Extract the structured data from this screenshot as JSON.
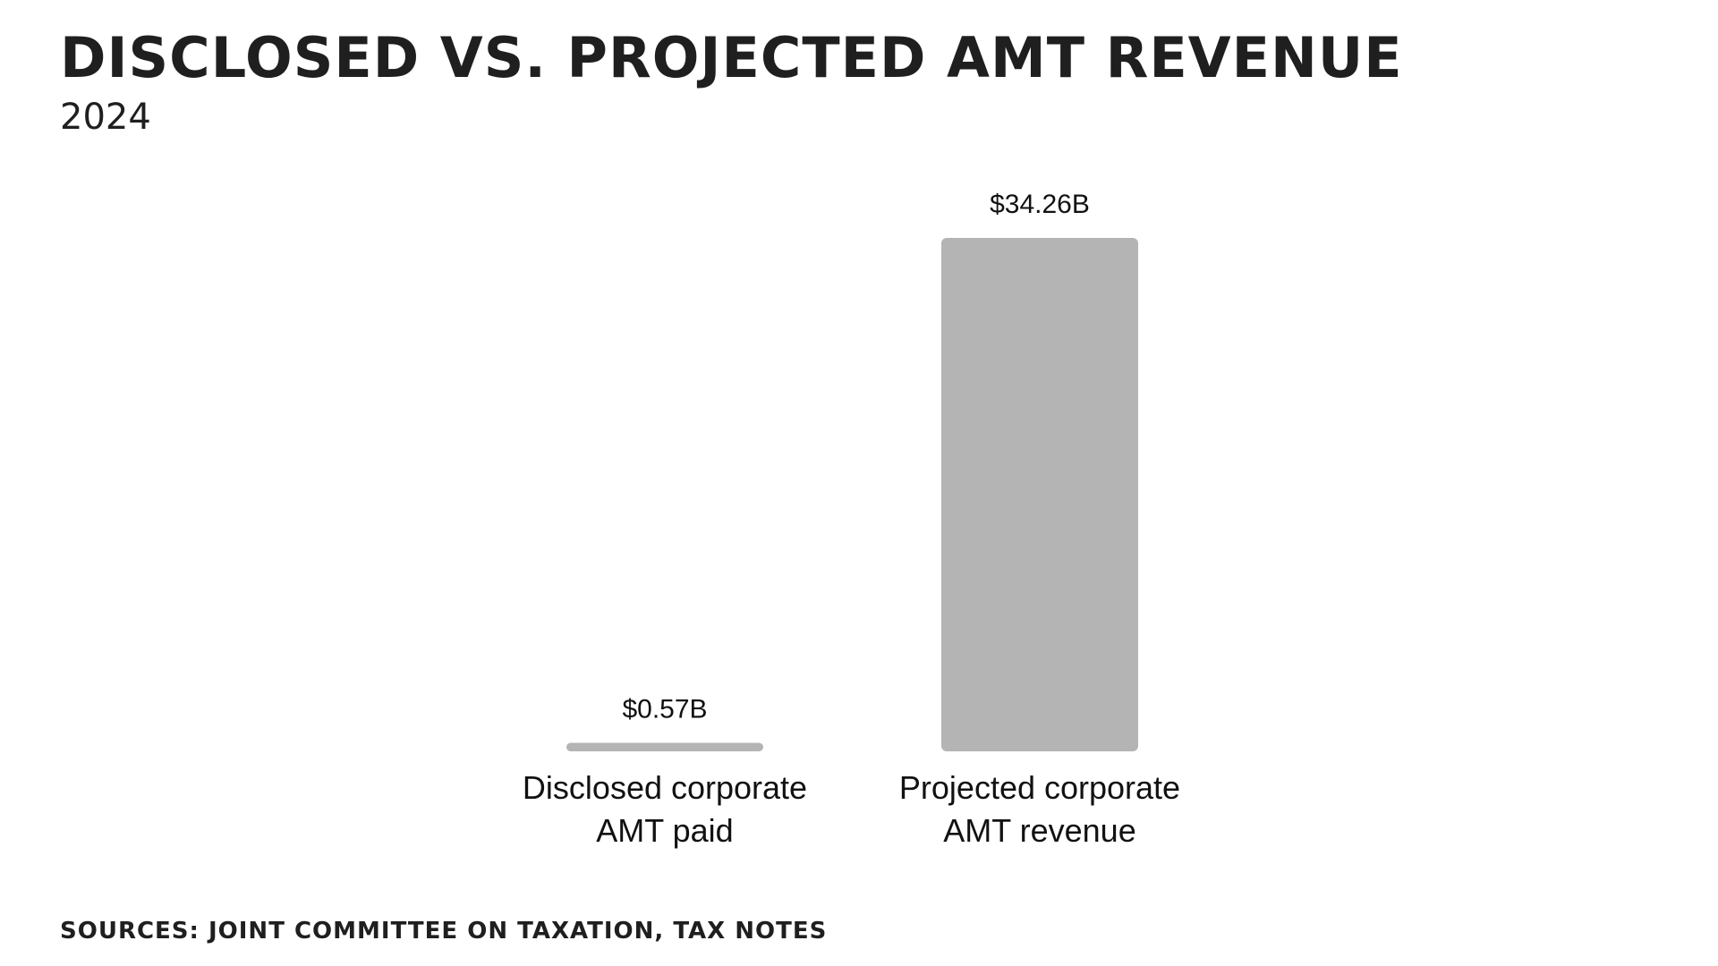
{
  "header": {
    "title": "Disclosed vs. projected AMT revenue",
    "subtitle": "2024"
  },
  "footer": {
    "source": "Sources: Joint Committee on Taxation, Tax Notes"
  },
  "colors": {
    "bar": "#b5b4b5",
    "text": "#1f1f1f"
  },
  "chart_data": {
    "type": "bar",
    "title": "Disclosed vs. projected AMT revenue",
    "subtitle": "2024",
    "categories": [
      [
        "Disclosed corporate",
        "AMT paid"
      ],
      [
        "Projected corporate",
        "AMT revenue"
      ]
    ],
    "values": [
      0.57,
      34.26
    ],
    "value_labels": [
      "$0.57B",
      "$34.26B"
    ],
    "unit": "billions of dollars",
    "ylim": [
      0,
      34.26
    ],
    "grid": false,
    "legend": "none"
  }
}
